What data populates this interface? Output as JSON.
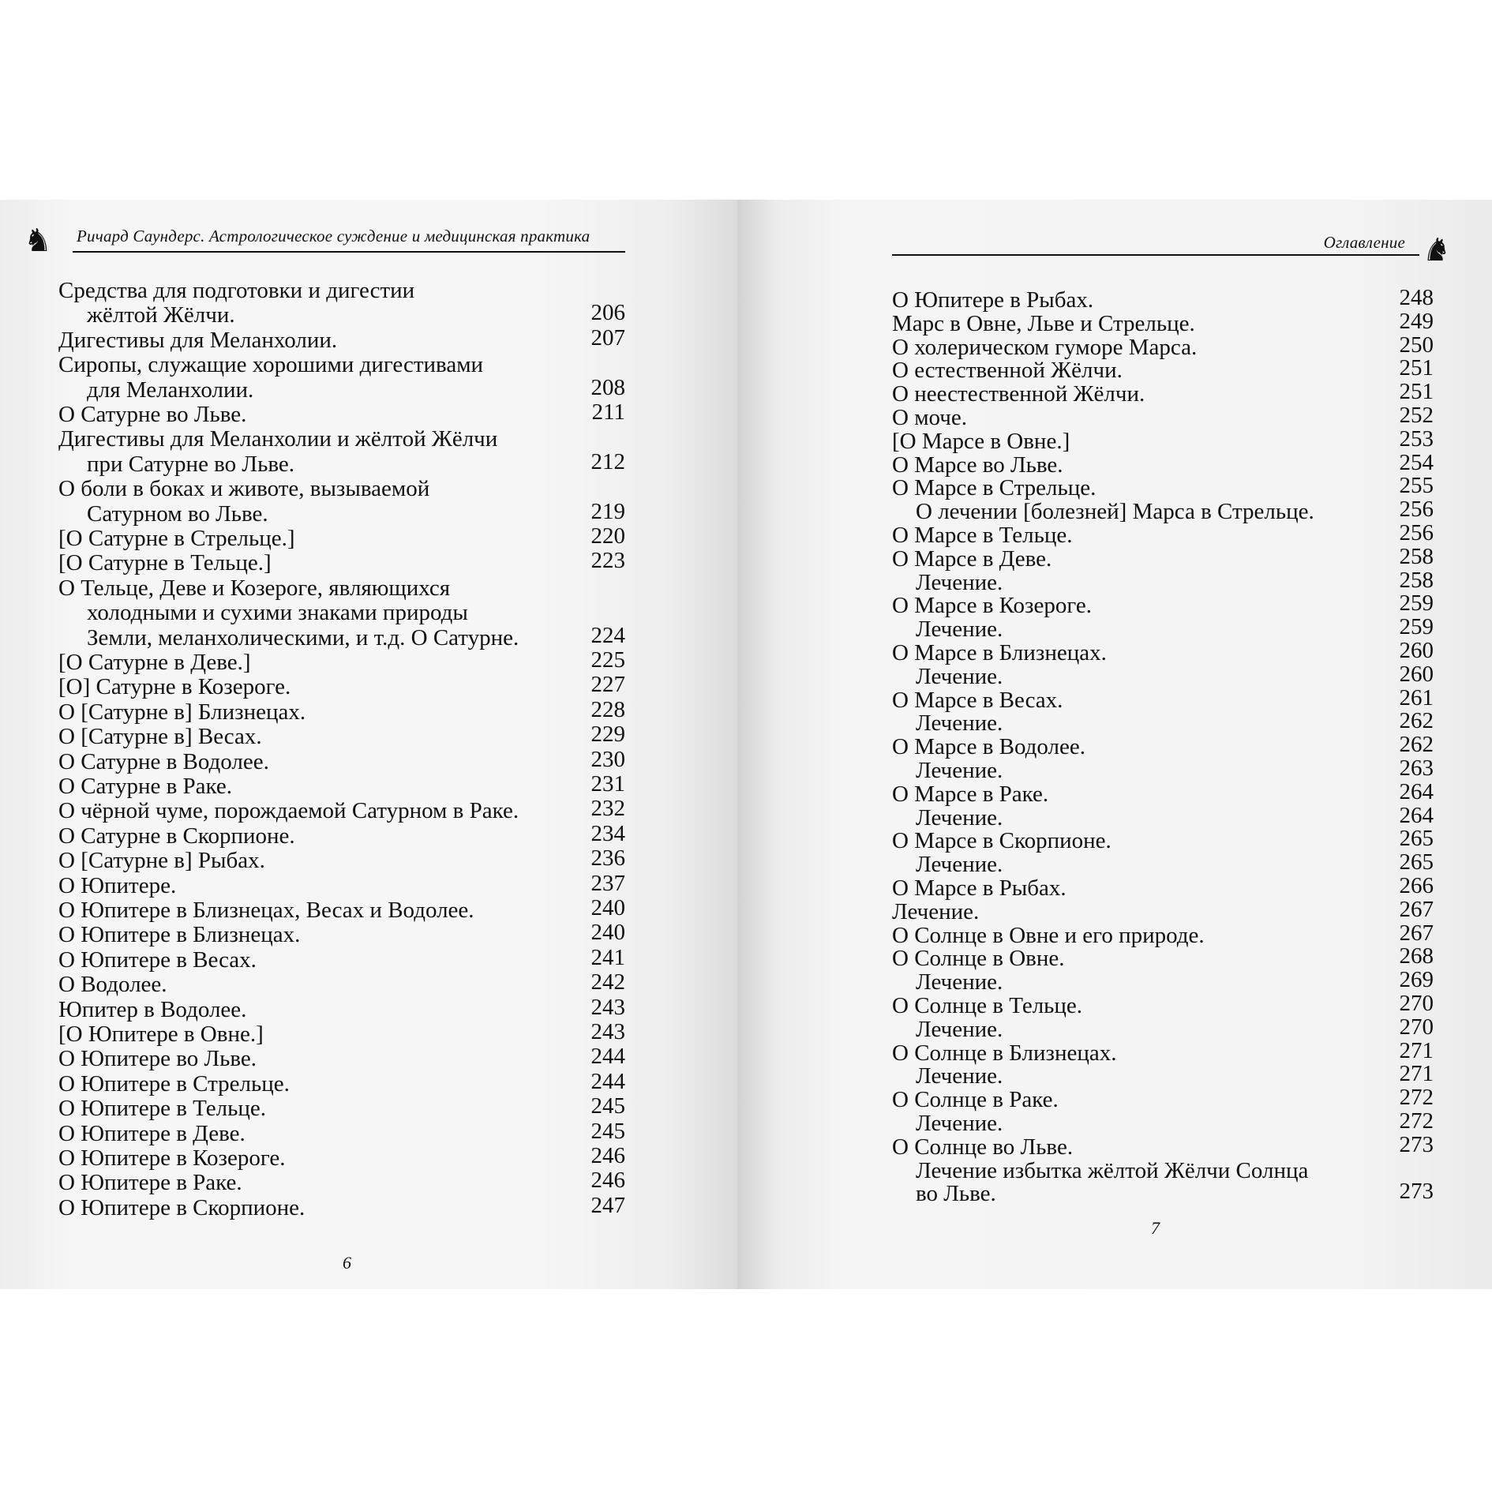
{
  "left_page": {
    "running_head": "Ричард Саундерс. Астрологическое суждение и медицинская практика",
    "folio": "6",
    "entries": [
      {
        "lines": [
          "Средства для подготовки и дигестии",
          "жёлтой Жёлчи."
        ],
        "page": "206"
      },
      {
        "lines": [
          "Дигестивы для Меланхолии."
        ],
        "page": "207"
      },
      {
        "lines": [
          "Сиропы, служащие хорошими дигестивами",
          "для Меланхолии."
        ],
        "page": "208"
      },
      {
        "lines": [
          "О Сатурне во Льве."
        ],
        "page": "211"
      },
      {
        "lines": [
          "Дигестивы для Меланхолии и жёлтой Жёлчи",
          "при Сатурне во Льве."
        ],
        "page": "212"
      },
      {
        "lines": [
          "О боли в боках и животе, вызываемой",
          "Сатурном во Льве."
        ],
        "page": "219"
      },
      {
        "lines": [
          "[О Сатурне в Стрельце.]"
        ],
        "page": "220"
      },
      {
        "lines": [
          "[О Сатурне в Тельце.]"
        ],
        "page": "223"
      },
      {
        "lines": [
          "О Тельце, Деве и Козероге, являющихся",
          "холодными и сухими знаками природы",
          "Земли, меланхолическими, и т.д. О Сатурне."
        ],
        "page": "224"
      },
      {
        "lines": [
          "[О Сатурне в Деве.]"
        ],
        "page": "225"
      },
      {
        "lines": [
          "[О] Сатурне в Козероге."
        ],
        "page": "227"
      },
      {
        "lines": [
          "О [Сатурне в] Близнецах."
        ],
        "page": "228"
      },
      {
        "lines": [
          "О [Сатурне в] Весах."
        ],
        "page": "229"
      },
      {
        "lines": [
          "О Сатурне в Водолее."
        ],
        "page": "230"
      },
      {
        "lines": [
          "О Сатурне в Раке."
        ],
        "page": "231"
      },
      {
        "lines": [
          "О чёрной чуме, порождаемой Сатурном в Раке."
        ],
        "page": "232"
      },
      {
        "lines": [
          "О Сатурне в Скорпионе."
        ],
        "page": "234"
      },
      {
        "lines": [
          "О [Сатурне в] Рыбах."
        ],
        "page": "236"
      },
      {
        "lines": [
          "О Юпитере."
        ],
        "page": "237"
      },
      {
        "lines": [
          "О Юпитере в Близнецах, Весах и Водолее."
        ],
        "page": "240"
      },
      {
        "lines": [
          "О Юпитере в Близнецах."
        ],
        "page": "240"
      },
      {
        "lines": [
          "О Юпитере в Весах."
        ],
        "page": "241"
      },
      {
        "lines": [
          "О Водолее."
        ],
        "page": "242"
      },
      {
        "lines": [
          "Юпитер в Водолее."
        ],
        "page": "243"
      },
      {
        "lines": [
          "[О Юпитере в Овне.]"
        ],
        "page": "243"
      },
      {
        "lines": [
          "О Юпитере во Льве."
        ],
        "page": "244"
      },
      {
        "lines": [
          "О Юпитере в Стрельце."
        ],
        "page": "244"
      },
      {
        "lines": [
          "О Юпитере в Тельце."
        ],
        "page": "245"
      },
      {
        "lines": [
          "О Юпитере в Деве."
        ],
        "page": "245"
      },
      {
        "lines": [
          "О Юпитере в Козероге."
        ],
        "page": "246"
      },
      {
        "lines": [
          "О Юпитере в Раке."
        ],
        "page": "246"
      },
      {
        "lines": [
          "О Юпитере в Скорпионе."
        ],
        "page": "247"
      }
    ]
  },
  "right_page": {
    "running_head": "Оглавление",
    "folio": "7",
    "entries": [
      {
        "lines": [
          "О Юпитере в Рыбах."
        ],
        "page": "248",
        "level": 1
      },
      {
        "lines": [
          "Марс в Овне, Льве и Стрельце."
        ],
        "page": "249",
        "level": 1
      },
      {
        "lines": [
          "О холерическом гуморе Марса."
        ],
        "page": "250",
        "level": 1
      },
      {
        "lines": [
          "О естественной Жёлчи."
        ],
        "page": "251",
        "level": 1
      },
      {
        "lines": [
          "О неестественной Жёлчи."
        ],
        "page": "251",
        "level": 1
      },
      {
        "lines": [
          "О моче."
        ],
        "page": "252",
        "level": 1
      },
      {
        "lines": [
          "[О Марсе в Овне.]"
        ],
        "page": "253",
        "level": 1
      },
      {
        "lines": [
          "О Марсе во Льве."
        ],
        "page": "254",
        "level": 1
      },
      {
        "lines": [
          "О Марсе в Стрельце."
        ],
        "page": "255",
        "level": 1
      },
      {
        "lines": [
          "О лечении [болезней] Марса в Стрельце."
        ],
        "page": "256",
        "level": 2
      },
      {
        "lines": [
          "О Марсе в Тельце."
        ],
        "page": "256",
        "level": 1
      },
      {
        "lines": [
          "О Марсе в Деве."
        ],
        "page": "258",
        "level": 1
      },
      {
        "lines": [
          "Лечение."
        ],
        "page": "258",
        "level": 2
      },
      {
        "lines": [
          "О Марсе в Козероге."
        ],
        "page": "259",
        "level": 1
      },
      {
        "lines": [
          "Лечение."
        ],
        "page": "259",
        "level": 2
      },
      {
        "lines": [
          "О Марсе в Близнецах."
        ],
        "page": "260",
        "level": 1
      },
      {
        "lines": [
          "Лечение."
        ],
        "page": "260",
        "level": 2
      },
      {
        "lines": [
          "О Марсе в Весах."
        ],
        "page": "261",
        "level": 1
      },
      {
        "lines": [
          "Лечение."
        ],
        "page": "262",
        "level": 2
      },
      {
        "lines": [
          "О Марсе в Водолее."
        ],
        "page": "262",
        "level": 1
      },
      {
        "lines": [
          "Лечение."
        ],
        "page": "263",
        "level": 2
      },
      {
        "lines": [
          "О Марсе в Раке."
        ],
        "page": "264",
        "level": 1
      },
      {
        "lines": [
          "Лечение."
        ],
        "page": "264",
        "level": 2
      },
      {
        "lines": [
          "О Марсе в Скорпионе."
        ],
        "page": "265",
        "level": 1
      },
      {
        "lines": [
          "Лечение."
        ],
        "page": "265",
        "level": 2
      },
      {
        "lines": [
          "О Марсе в Рыбах."
        ],
        "page": "266",
        "level": 1
      },
      {
        "lines": [
          "Лечение."
        ],
        "page": "267",
        "level": 1
      },
      {
        "lines": [
          "О Солнце в Овне и его природе."
        ],
        "page": "267",
        "level": 1
      },
      {
        "lines": [
          "О Солнце в Овне."
        ],
        "page": "268",
        "level": 1
      },
      {
        "lines": [
          "Лечение."
        ],
        "page": "269",
        "level": 2
      },
      {
        "lines": [
          "О Солнце в Тельце."
        ],
        "page": "270",
        "level": 1
      },
      {
        "lines": [
          "Лечение."
        ],
        "page": "270",
        "level": 2
      },
      {
        "lines": [
          "О Солнце в Близнецах."
        ],
        "page": "271",
        "level": 1
      },
      {
        "lines": [
          "Лечение."
        ],
        "page": "271",
        "level": 2
      },
      {
        "lines": [
          "О Солнце в Раке."
        ],
        "page": "272",
        "level": 1
      },
      {
        "lines": [
          "Лечение."
        ],
        "page": "272",
        "level": 2
      },
      {
        "lines": [
          "О Солнце во Льве."
        ],
        "page": "273",
        "level": 1
      },
      {
        "lines": [
          "Лечение избытка жёлтой Жёлчи Солнца",
          "во Льве."
        ],
        "page": "273",
        "level": 2
      }
    ]
  }
}
